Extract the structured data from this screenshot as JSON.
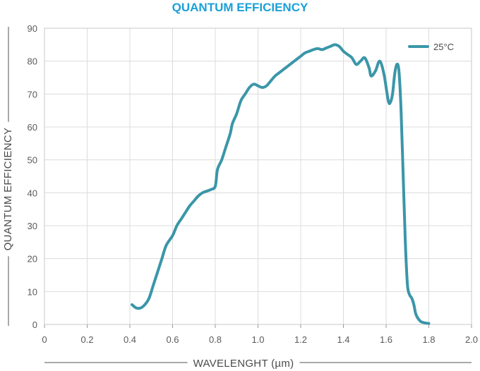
{
  "chart_data": {
    "type": "line",
    "title": "QUANTUM EFFICIENCY",
    "xlabel": "WAVELENGHT (µm)",
    "ylabel": "QUANTUM EFFICIENCY",
    "xlim": [
      0,
      2.0
    ],
    "ylim": [
      0,
      90
    ],
    "x_ticks": [
      "0",
      "0.2",
      "0.4",
      "0.6",
      "0.8",
      "1.0",
      "1.2",
      "1.4",
      "1.6",
      "1.8",
      "2.0"
    ],
    "y_ticks": [
      "0",
      "10",
      "20",
      "30",
      "40",
      "50",
      "60",
      "70",
      "80",
      "90"
    ],
    "grid": true,
    "legend_position": "top-right",
    "series": [
      {
        "name": "25°C",
        "color": "#3a96a8",
        "points": [
          [
            0.41,
            6
          ],
          [
            0.43,
            5
          ],
          [
            0.45,
            5
          ],
          [
            0.47,
            6
          ],
          [
            0.49,
            8
          ],
          [
            0.51,
            12
          ],
          [
            0.53,
            16
          ],
          [
            0.55,
            20
          ],
          [
            0.57,
            24
          ],
          [
            0.6,
            27
          ],
          [
            0.62,
            30
          ],
          [
            0.64,
            32
          ],
          [
            0.66,
            34
          ],
          [
            0.68,
            36
          ],
          [
            0.7,
            37.5
          ],
          [
            0.72,
            39
          ],
          [
            0.74,
            40
          ],
          [
            0.76,
            40.5
          ],
          [
            0.78,
            41
          ],
          [
            0.8,
            42
          ],
          [
            0.81,
            47
          ],
          [
            0.83,
            50
          ],
          [
            0.85,
            54
          ],
          [
            0.87,
            58
          ],
          [
            0.88,
            61
          ],
          [
            0.9,
            64
          ],
          [
            0.92,
            68
          ],
          [
            0.94,
            70
          ],
          [
            0.96,
            72
          ],
          [
            0.98,
            73
          ],
          [
            1.0,
            72.5
          ],
          [
            1.02,
            72
          ],
          [
            1.04,
            72.5
          ],
          [
            1.06,
            74
          ],
          [
            1.08,
            75.5
          ],
          [
            1.1,
            76.5
          ],
          [
            1.12,
            77.5
          ],
          [
            1.14,
            78.5
          ],
          [
            1.16,
            79.5
          ],
          [
            1.18,
            80.5
          ],
          [
            1.2,
            81.5
          ],
          [
            1.22,
            82.5
          ],
          [
            1.24,
            83
          ],
          [
            1.26,
            83.5
          ],
          [
            1.28,
            83.8
          ],
          [
            1.3,
            83.5
          ],
          [
            1.32,
            84
          ],
          [
            1.34,
            84.5
          ],
          [
            1.36,
            85
          ],
          [
            1.38,
            84.5
          ],
          [
            1.4,
            83
          ],
          [
            1.42,
            82
          ],
          [
            1.44,
            81
          ],
          [
            1.46,
            79
          ],
          [
            1.48,
            80
          ],
          [
            1.5,
            81
          ],
          [
            1.52,
            78
          ],
          [
            1.53,
            75.5
          ],
          [
            1.55,
            77
          ],
          [
            1.57,
            80
          ],
          [
            1.59,
            76
          ],
          [
            1.61,
            68
          ],
          [
            1.62,
            67.5
          ],
          [
            1.63,
            70
          ],
          [
            1.64,
            76
          ],
          [
            1.65,
            79
          ],
          [
            1.66,
            77
          ],
          [
            1.67,
            65
          ],
          [
            1.68,
            45
          ],
          [
            1.69,
            25
          ],
          [
            1.7,
            12
          ],
          [
            1.71,
            9
          ],
          [
            1.72,
            8
          ],
          [
            1.73,
            6
          ],
          [
            1.74,
            3
          ],
          [
            1.76,
            1
          ],
          [
            1.78,
            0.5
          ],
          [
            1.8,
            0.3
          ]
        ]
      }
    ]
  }
}
